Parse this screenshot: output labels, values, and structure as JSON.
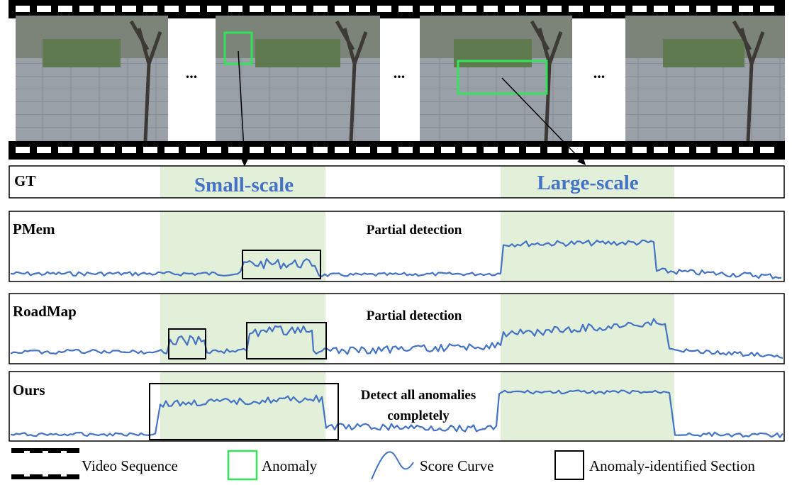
{
  "colors": {
    "curve": "#4472C4",
    "gt_band": "#E2EFD9",
    "anomaly_box": "#33E35A",
    "section_box": "#000000",
    "scale_text": "#4472C4",
    "frame_bg": "#888E96"
  },
  "film": {
    "ellipsis": [
      "...",
      "...",
      "..."
    ],
    "frames": [
      {
        "anomaly": false
      },
      {
        "anomaly": true,
        "kind": "small"
      },
      {
        "anomaly": true,
        "kind": "large"
      },
      {
        "anomaly": false
      }
    ]
  },
  "gt": {
    "label": "GT",
    "small_label": "Small-scale",
    "large_label": "Large-scale"
  },
  "panels": [
    {
      "label": "PMem",
      "annotation": [
        "Partial detection"
      ]
    },
    {
      "label": "RoadMap",
      "annotation": [
        "Partial detection"
      ]
    },
    {
      "label": "Ours",
      "annotation": [
        "Detect all anomalies",
        "completely"
      ]
    }
  ],
  "legend": {
    "video_sequence": "Video Sequence",
    "anomaly": "Anomaly",
    "score_curve": "Score Curve",
    "section": "Anomaly-identified Section"
  }
}
